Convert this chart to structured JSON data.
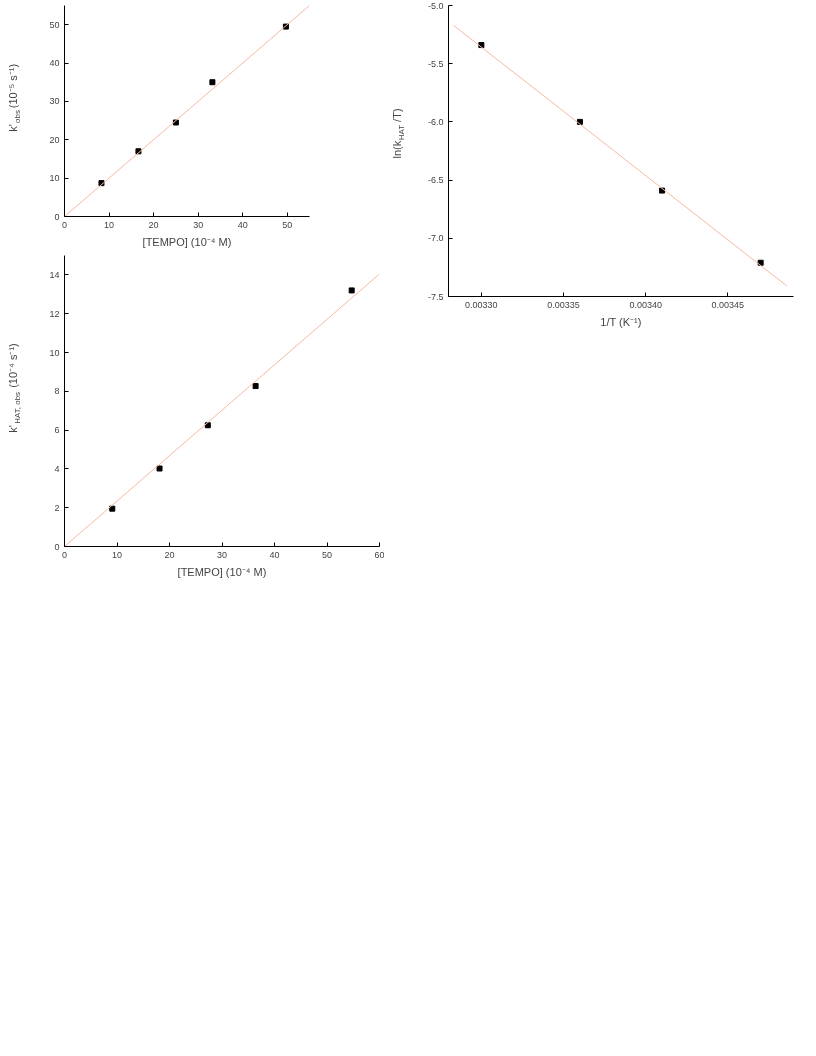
{
  "chart_data": [
    {
      "type": "scatter",
      "xlabel": "[TEMPO] (10⁻⁴ M)",
      "ylabel": "k'$_{obs}$ (10⁻⁵ s⁻¹)",
      "xlim": [
        0,
        55
      ],
      "ylim": [
        0,
        55
      ],
      "xticks": [
        0,
        10,
        20,
        30,
        40,
        50
      ],
      "yticks": [
        0,
        10,
        20,
        30,
        40,
        50
      ],
      "grid": false,
      "series": [
        {
          "color": "#000000",
          "marker": "square",
          "x": [
            8.3,
            16.6,
            25,
            33.2,
            49.7
          ],
          "values": [
            8.7,
            17,
            24.5,
            35,
            49.5
          ]
        },
        {
          "type": "line",
          "color": "#f7b9a3",
          "marker": "none",
          "x": [
            0,
            55
          ],
          "values": [
            0,
            55
          ],
          "line_style": "solid"
        }
      ]
    },
    {
      "type": "scatter",
      "xlabel": "[TEMPO] (10⁻⁴ M)",
      "ylabel": "k'$_{HAT, obs}$ (10⁻⁴ s⁻¹)",
      "xlim": [
        0,
        60
      ],
      "ylim": [
        0,
        15
      ],
      "xticks": [
        0,
        10,
        20,
        30,
        40,
        50,
        60
      ],
      "yticks": [
        0,
        2,
        4,
        6,
        8,
        10,
        12,
        14
      ],
      "grid": false,
      "series": [
        {
          "color": "#000000",
          "marker": "square",
          "x": [
            9.1,
            18.1,
            27.3,
            36.4,
            54.7
          ],
          "values": [
            1.95,
            4.02,
            6.25,
            8.27,
            13.2
          ]
        },
        {
          "type": "line",
          "color": "#f7b9a3",
          "marker": "none",
          "x": [
            0,
            60
          ],
          "values": [
            0,
            14.05
          ],
          "line_style": "solid"
        }
      ]
    },
    {
      "type": "scatter",
      "xlabel": "1/T (K⁻¹)",
      "ylabel": "ln(k$_{HAT}$/T)",
      "xlim": [
        0.00328,
        0.00349
      ],
      "ylim": [
        -7.5,
        -5.0
      ],
      "xticks": [
        {
          "value": 0.0033,
          "label": "0.00330"
        },
        {
          "value": 0.00335,
          "label": "0.00335"
        },
        {
          "value": 0.0034,
          "label": "0.00340"
        },
        {
          "value": 0.00345,
          "label": "0.00345"
        }
      ],
      "yticks": [
        {
          "value": -7.5,
          "label": "-7.5"
        },
        {
          "value": -7.0,
          "label": "-7.0"
        },
        {
          "value": -6.5,
          "label": "-6.5"
        },
        {
          "value": -6.0,
          "label": "-6.0"
        },
        {
          "value": -5.5,
          "label": "-5.5"
        },
        {
          "value": -5.0,
          "label": "-5.0"
        }
      ],
      "grid": false,
      "series": [
        {
          "color": "#000000",
          "marker": "square",
          "x": [
            0.0033,
            0.00336,
            0.00341,
            0.00347
          ],
          "values": [
            -5.34,
            -6.0,
            -6.59,
            -7.21
          ]
        },
        {
          "type": "line",
          "color": "#f7b9a3",
          "marker": "none",
          "x": [
            0.003283,
            0.003486
          ],
          "values": [
            -5.17,
            -7.41
          ],
          "line_style": "solid"
        }
      ]
    }
  ]
}
